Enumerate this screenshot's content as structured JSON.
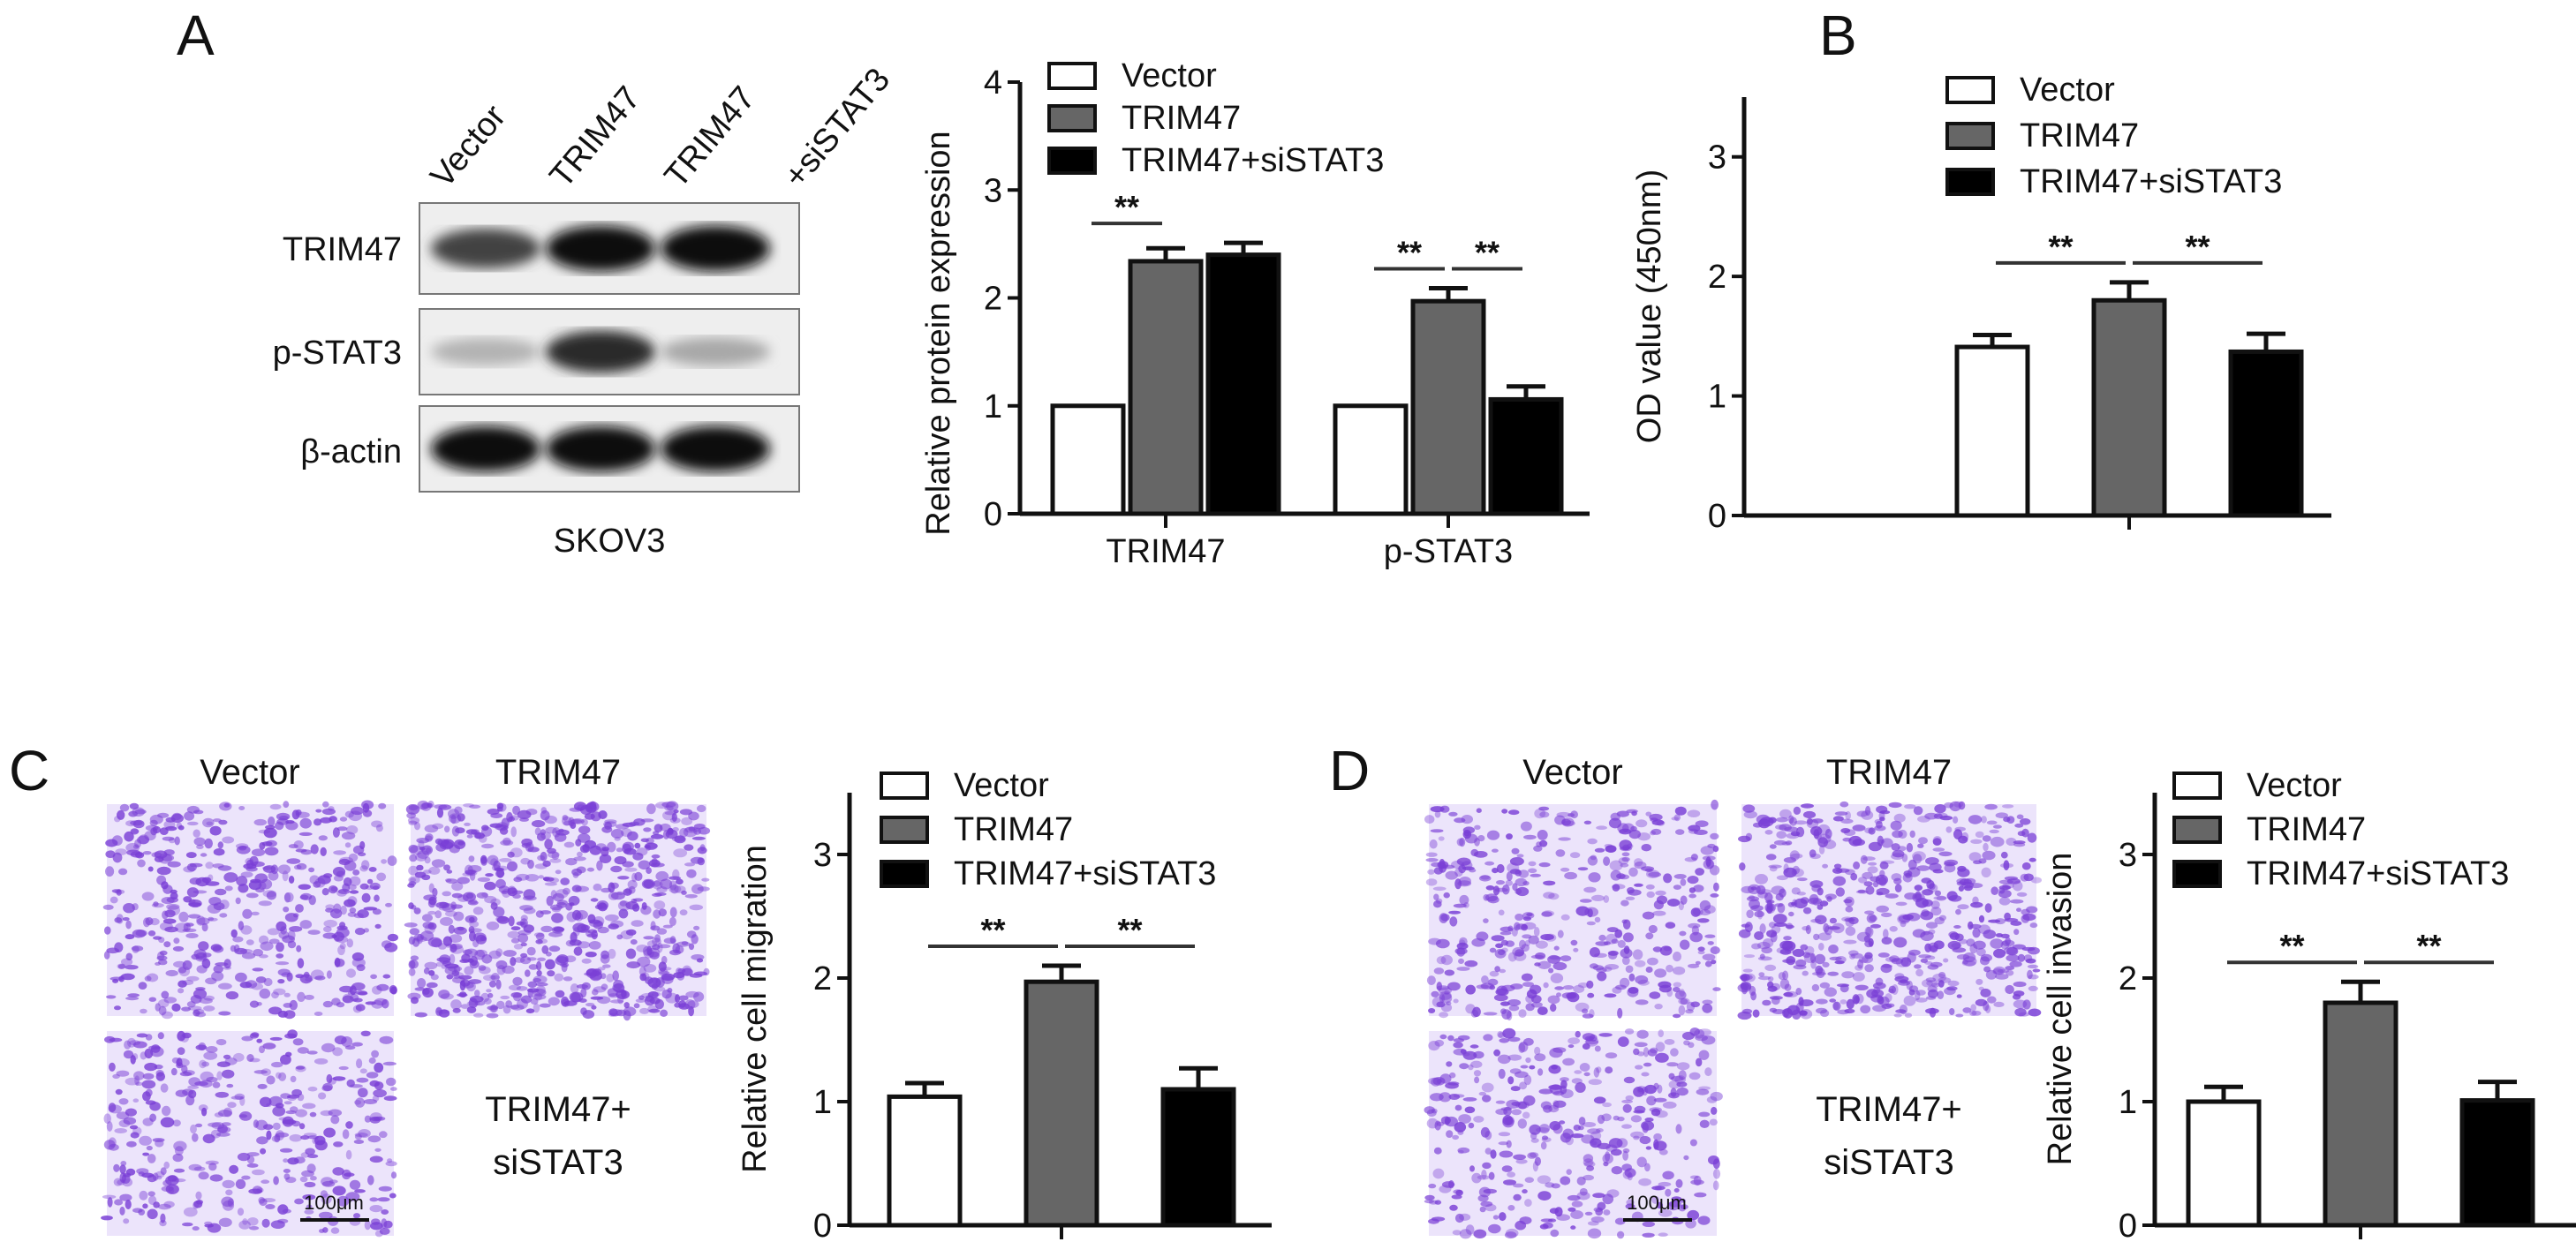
{
  "panels": {
    "A": {
      "letter": "A"
    },
    "B": {
      "letter": "B"
    },
    "C": {
      "letter": "C"
    },
    "D": {
      "letter": "D"
    }
  },
  "western_blot": {
    "lanes": [
      "Vector",
      "TRIM47",
      "TRIM47",
      "+siSTAT3"
    ],
    "rows": [
      {
        "label": "TRIM47",
        "intensity": [
          0.75,
          1.0,
          1.0
        ]
      },
      {
        "label": "p-STAT3",
        "intensity": [
          0.25,
          0.85,
          0.3
        ]
      },
      {
        "label": "β-actin",
        "intensity": [
          1.0,
          1.0,
          1.0
        ]
      }
    ],
    "cell_line": "SKOV3"
  },
  "micrographs": {
    "C": {
      "top_left": "Vector",
      "top_right": "TRIM47",
      "bottom_right_line1": "TRIM47+",
      "bottom_right_line2": "siSTAT3",
      "scale_bar": "100μm",
      "density": [
        0.55,
        0.85,
        0.45
      ]
    },
    "D": {
      "top_left": "Vector",
      "top_right": "TRIM47",
      "bottom_right_line1": "TRIM47+",
      "bottom_right_line2": "siSTAT3",
      "scale_bar": "100μm",
      "density": [
        0.5,
        0.7,
        0.45
      ]
    }
  },
  "colors": {
    "Vector": "#ffffff",
    "TRIM47": "#666666",
    "TRIM47+siSTAT3": "#000000",
    "stain": "#7a3fd6"
  },
  "chart_data": [
    {
      "id": "A",
      "type": "bar",
      "ylabel": "Relative protein expression",
      "ylim": [
        0,
        4
      ],
      "yticks": [
        "0",
        "1",
        "2",
        "3",
        "4"
      ],
      "categories": [
        "TRIM47",
        "p-STAT3"
      ],
      "legend": [
        "Vector",
        "TRIM47",
        "TRIM47+siSTAT3"
      ],
      "legend_position": "top-left",
      "series": [
        {
          "name": "Vector",
          "values": [
            1.0,
            1.0
          ],
          "errors": [
            0,
            0
          ]
        },
        {
          "name": "TRIM47",
          "values": [
            2.34,
            1.97
          ],
          "errors": [
            0.12,
            0.12
          ]
        },
        {
          "name": "TRIM47+siSTAT3",
          "values": [
            2.4,
            1.06
          ],
          "errors": [
            0.11,
            0.12
          ]
        }
      ],
      "significance": [
        {
          "category": 0,
          "from": 0,
          "to": 1,
          "label": "**"
        },
        {
          "category": 1,
          "from": 0,
          "to": 1,
          "label": "**"
        },
        {
          "category": 1,
          "from": 1,
          "to": 2,
          "label": "**"
        }
      ]
    },
    {
      "id": "B",
      "type": "bar",
      "ylabel": "OD value (450nm)",
      "ylim": [
        0,
        3.5
      ],
      "yticks": [
        "0",
        "1",
        "2",
        "3"
      ],
      "categories": [
        ""
      ],
      "legend": [
        "Vector",
        "TRIM47",
        "TRIM47+siSTAT3"
      ],
      "legend_position": "top-left",
      "series": [
        {
          "name": "Vector",
          "values": [
            1.41
          ],
          "errors": [
            0.1
          ]
        },
        {
          "name": "TRIM47",
          "values": [
            1.8
          ],
          "errors": [
            0.15
          ]
        },
        {
          "name": "TRIM47+siSTAT3",
          "values": [
            1.37
          ],
          "errors": [
            0.15
          ]
        }
      ],
      "significance": [
        {
          "category": 0,
          "from": 0,
          "to": 1,
          "label": "**"
        },
        {
          "category": 0,
          "from": 1,
          "to": 2,
          "label": "**"
        }
      ]
    },
    {
      "id": "C",
      "type": "bar",
      "ylabel": "Relative cell migration",
      "ylim": [
        0,
        3.5
      ],
      "yticks": [
        "0",
        "1",
        "2",
        "3"
      ],
      "categories": [
        ""
      ],
      "legend": [
        "Vector",
        "TRIM47",
        "TRIM47+siSTAT3"
      ],
      "legend_position": "top-left",
      "series": [
        {
          "name": "Vector",
          "values": [
            1.04
          ],
          "errors": [
            0.11
          ]
        },
        {
          "name": "TRIM47",
          "values": [
            1.97
          ],
          "errors": [
            0.13
          ]
        },
        {
          "name": "TRIM47+siSTAT3",
          "values": [
            1.1
          ],
          "errors": [
            0.17
          ]
        }
      ],
      "significance": [
        {
          "category": 0,
          "from": 0,
          "to": 1,
          "label": "**"
        },
        {
          "category": 0,
          "from": 1,
          "to": 2,
          "label": "**"
        }
      ]
    },
    {
      "id": "D",
      "type": "bar",
      "ylabel": "Relative cell invasion",
      "ylim": [
        0,
        3.5
      ],
      "yticks": [
        "0",
        "1",
        "2",
        "3"
      ],
      "categories": [
        ""
      ],
      "legend": [
        "Vector",
        "TRIM47",
        "TRIM47+siSTAT3"
      ],
      "legend_position": "top-left",
      "series": [
        {
          "name": "Vector",
          "values": [
            1.0
          ],
          "errors": [
            0.12
          ]
        },
        {
          "name": "TRIM47",
          "values": [
            1.8
          ],
          "errors": [
            0.17
          ]
        },
        {
          "name": "TRIM47+siSTAT3",
          "values": [
            1.01
          ],
          "errors": [
            0.15
          ]
        }
      ],
      "significance": [
        {
          "category": 0,
          "from": 0,
          "to": 1,
          "label": "**"
        },
        {
          "category": 0,
          "from": 1,
          "to": 2,
          "label": "**"
        }
      ]
    }
  ]
}
